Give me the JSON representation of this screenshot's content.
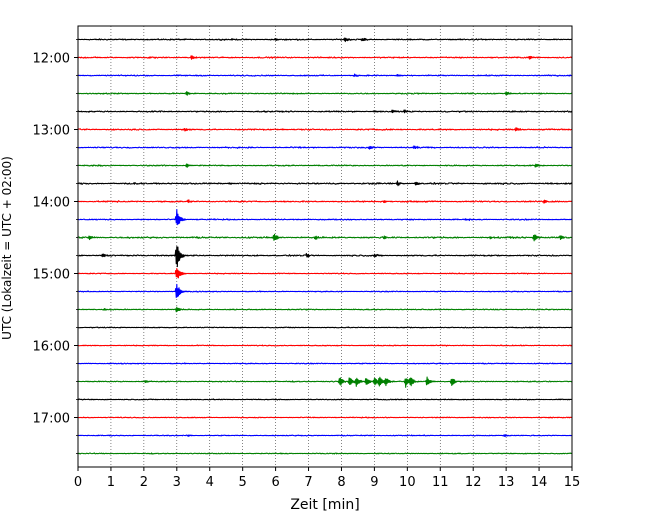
{
  "chart_data": {
    "type": "line",
    "title": "",
    "xlabel": "Zeit  [min]",
    "ylabel": "UTC (Lokalzeit = UTC + 02:00)",
    "xlim": [
      0,
      15
    ],
    "xticks": [
      0,
      1,
      2,
      3,
      4,
      5,
      6,
      7,
      8,
      9,
      10,
      11,
      12,
      13,
      14,
      15
    ],
    "ytick_labels": [
      "12:00",
      "13:00",
      "14:00",
      "15:00",
      "16:00",
      "17:00"
    ],
    "grid": "vertical dotted lines at each minute",
    "colors": [
      "#000000",
      "#ff0000",
      "#0000ff",
      "#008000"
    ],
    "rows": [
      {
        "start": "11:45",
        "color": "#000000",
        "noise": 0.5,
        "events": [
          {
            "t": 8.1,
            "amp": 2.2
          },
          {
            "t": 8.65,
            "amp": 2.2
          },
          {
            "t": 6.0,
            "amp": 0.8
          }
        ]
      },
      {
        "start": "12:00",
        "color": "#ff0000",
        "noise": 0.5,
        "events": [
          {
            "t": 3.45,
            "amp": 2.2
          },
          {
            "t": 13.7,
            "amp": 2.4
          },
          {
            "t": 2.2,
            "amp": 0.8
          }
        ]
      },
      {
        "start": "12:15",
        "color": "#0000ff",
        "noise": 0.45,
        "events": [
          {
            "t": 8.4,
            "amp": 1.6
          },
          {
            "t": 9.7,
            "amp": 1.4
          }
        ]
      },
      {
        "start": "12:30",
        "color": "#008000",
        "noise": 0.45,
        "events": [
          {
            "t": 3.3,
            "amp": 2.0
          },
          {
            "t": 13.0,
            "amp": 2.0
          }
        ]
      },
      {
        "start": "12:45",
        "color": "#000000",
        "noise": 0.5,
        "events": [
          {
            "t": 9.55,
            "amp": 2.0
          },
          {
            "t": 9.9,
            "amp": 2.0
          },
          {
            "t": 9.0,
            "amp": 1.0
          }
        ]
      },
      {
        "start": "13:00",
        "color": "#ff0000",
        "noise": 0.55,
        "events": [
          {
            "t": 3.25,
            "amp": 2.0
          },
          {
            "t": 13.3,
            "amp": 2.0
          },
          {
            "t": 6.2,
            "amp": 0.9
          }
        ]
      },
      {
        "start": "13:15",
        "color": "#0000ff",
        "noise": 0.5,
        "events": [
          {
            "t": 8.85,
            "amp": 2.0
          },
          {
            "t": 10.2,
            "amp": 1.8
          }
        ]
      },
      {
        "start": "13:30",
        "color": "#008000",
        "noise": 0.45,
        "events": [
          {
            "t": 3.3,
            "amp": 2.0
          },
          {
            "t": 13.9,
            "amp": 2.0
          }
        ]
      },
      {
        "start": "13:45",
        "color": "#000000",
        "noise": 0.6,
        "events": [
          {
            "t": 9.7,
            "amp": 2.4
          },
          {
            "t": 10.25,
            "amp": 2.0
          },
          {
            "t": 4.6,
            "amp": 1.0
          }
        ]
      },
      {
        "start": "14:00",
        "color": "#ff0000",
        "noise": 0.55,
        "events": [
          {
            "t": 3.35,
            "amp": 1.6
          },
          {
            "t": 14.15,
            "amp": 2.2
          },
          {
            "t": 9.3,
            "amp": 1.2
          }
        ]
      },
      {
        "start": "14:15",
        "color": "#0000ff",
        "noise": 0.45,
        "events": [
          {
            "t": 3.0,
            "amp": 11.0
          },
          {
            "t": 11.8,
            "amp": 1.0
          }
        ]
      },
      {
        "start": "14:30",
        "color": "#008000",
        "noise": 0.6,
        "events": [
          {
            "t": 0.35,
            "amp": 2.0
          },
          {
            "t": 5.95,
            "amp": 4.5
          },
          {
            "t": 7.2,
            "amp": 2.0
          },
          {
            "t": 9.3,
            "amp": 2.0
          },
          {
            "t": 13.85,
            "amp": 4.5
          },
          {
            "t": 14.65,
            "amp": 2.0
          },
          {
            "t": 12.5,
            "amp": 1.5
          }
        ]
      },
      {
        "start": "14:45",
        "color": "#000000",
        "noise": 0.55,
        "events": [
          {
            "t": 3.0,
            "amp": 16.0
          },
          {
            "t": 0.75,
            "amp": 2.0
          },
          {
            "t": 6.95,
            "amp": 2.0
          },
          {
            "t": 9.0,
            "amp": 1.5
          }
        ]
      },
      {
        "start": "15:00",
        "color": "#ff0000",
        "noise": 0.35,
        "events": [
          {
            "t": 3.0,
            "amp": 9.0
          }
        ]
      },
      {
        "start": "15:15",
        "color": "#0000ff",
        "noise": 0.35,
        "events": [
          {
            "t": 3.0,
            "amp": 9.0
          }
        ]
      },
      {
        "start": "15:30",
        "color": "#008000",
        "noise": 0.4,
        "events": [
          {
            "t": 3.0,
            "amp": 3.0
          },
          {
            "t": 0.8,
            "amp": 1.2
          }
        ]
      },
      {
        "start": "15:45",
        "color": "#000000",
        "noise": 0.35,
        "events": []
      },
      {
        "start": "16:00",
        "color": "#ff0000",
        "noise": 0.35,
        "events": []
      },
      {
        "start": "16:15",
        "color": "#0000ff",
        "noise": 0.35,
        "events": []
      },
      {
        "start": "16:30",
        "color": "#008000",
        "noise": 0.4,
        "events": [
          {
            "t": 2.05,
            "amp": 1.4
          },
          {
            "t": 7.95,
            "amp": 5.5
          },
          {
            "t": 8.25,
            "amp": 5.0
          },
          {
            "t": 8.45,
            "amp": 5.0
          },
          {
            "t": 8.75,
            "amp": 4.5
          },
          {
            "t": 9.0,
            "amp": 5.0
          },
          {
            "t": 9.15,
            "amp": 5.0
          },
          {
            "t": 9.35,
            "amp": 5.0
          },
          {
            "t": 9.95,
            "amp": 6.0
          },
          {
            "t": 10.1,
            "amp": 4.5
          },
          {
            "t": 10.6,
            "amp": 5.0
          },
          {
            "t": 11.35,
            "amp": 5.0
          }
        ]
      },
      {
        "start": "16:45",
        "color": "#000000",
        "noise": 0.35,
        "events": []
      },
      {
        "start": "17:00",
        "color": "#ff0000",
        "noise": 0.35,
        "events": []
      },
      {
        "start": "17:15",
        "color": "#0000ff",
        "noise": 0.35,
        "events": [
          {
            "t": 3.35,
            "amp": 1.0
          },
          {
            "t": 12.95,
            "amp": 1.2
          }
        ]
      },
      {
        "start": "17:30",
        "color": "#008000",
        "noise": 0.35,
        "events": []
      }
    ]
  }
}
